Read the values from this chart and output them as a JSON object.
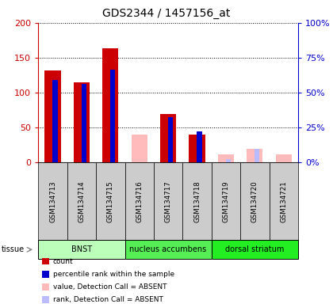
{
  "title": "GDS2344 / 1457156_at",
  "samples": [
    "GSM134713",
    "GSM134714",
    "GSM134715",
    "GSM134716",
    "GSM134717",
    "GSM134718",
    "GSM134719",
    "GSM134720",
    "GSM134721"
  ],
  "tissues": [
    {
      "label": "BNST",
      "indices": [
        0,
        1,
        2
      ],
      "color": "#bbffbb"
    },
    {
      "label": "nucleus accumbens",
      "indices": [
        3,
        4,
        5
      ],
      "color": "#55ee55"
    },
    {
      "label": "dorsal striatum",
      "indices": [
        6,
        7,
        8
      ],
      "color": "#22ee22"
    }
  ],
  "count_values": [
    132,
    115,
    163,
    0,
    70,
    40,
    0,
    0,
    0
  ],
  "rank_values": [
    59,
    56.5,
    66.5,
    0,
    32.5,
    22.5,
    0,
    0,
    0
  ],
  "absent_value": [
    0,
    0,
    0,
    40,
    0,
    0,
    12,
    20,
    12
  ],
  "absent_rank": [
    0,
    0,
    0,
    0,
    0,
    0,
    2.5,
    10,
    0
  ],
  "ylim_left": [
    0,
    200
  ],
  "ylim_right": [
    0,
    100
  ],
  "yticks_left": [
    0,
    50,
    100,
    150,
    200
  ],
  "ytick_labels_left": [
    "0",
    "50",
    "100",
    "150",
    "200"
  ],
  "yticks_right": [
    0,
    25,
    50,
    75,
    100
  ],
  "ytick_labels_right": [
    "0%",
    "25%",
    "50%",
    "75%",
    "100%"
  ],
  "color_count": "#cc0000",
  "color_rank": "#0000cc",
  "color_absent_value": "#ffbbbb",
  "color_absent_rank": "#bbbbff",
  "background_samples": "#cccccc",
  "legend_entries": [
    {
      "color": "#cc0000",
      "label": "count"
    },
    {
      "color": "#0000cc",
      "label": "percentile rank within the sample"
    },
    {
      "color": "#ffbbbb",
      "label": "value, Detection Call = ABSENT"
    },
    {
      "color": "#bbbbff",
      "label": "rank, Detection Call = ABSENT"
    }
  ]
}
